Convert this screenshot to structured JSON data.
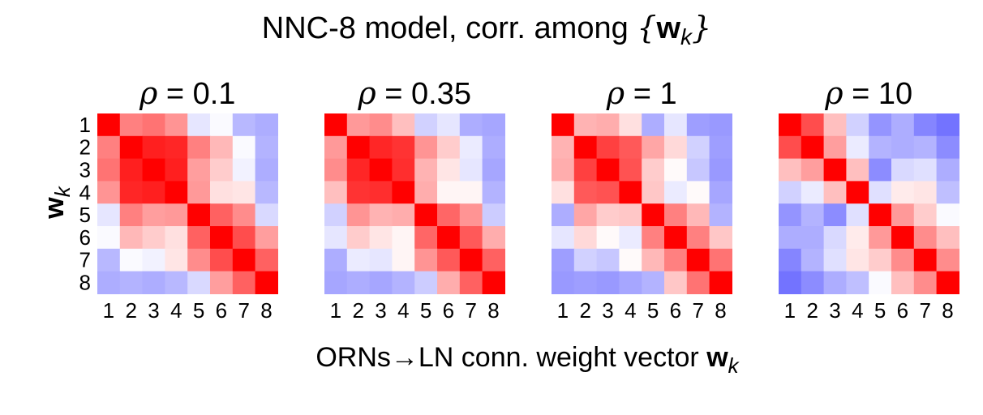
{
  "figure": {
    "title_main": "NNC-8 model, corr. among ",
    "title_brace_open": "{",
    "title_w": "w",
    "title_k": "k",
    "title_brace_close": "}",
    "xlabel_main": "ORNs→LN conn. weight vector ",
    "xlabel_w": "w",
    "xlabel_k": "k",
    "ylabel_w": "w",
    "ylabel_k": "k"
  },
  "chart_data": {
    "type": "heatmap",
    "title": "NNC-8 model, corr. among {w_k}",
    "xlabel": "ORNs→LN conn. weight vector w_k",
    "ylabel": "w_k",
    "colormap": {
      "low": "#0000ff",
      "mid": "#ffffff",
      "high": "#ff0000"
    },
    "value_range": [
      -1,
      1
    ],
    "x_ticks": [
      "1",
      "2",
      "3",
      "4",
      "5",
      "6",
      "7",
      "8"
    ],
    "y_ticks": [
      "1",
      "2",
      "3",
      "4",
      "5",
      "6",
      "7",
      "8"
    ],
    "panels": [
      {
        "rho_symbol": "ρ",
        "rho_text": " = 0.1",
        "matrix": [
          [
            1.0,
            0.5,
            0.55,
            0.42,
            -0.1,
            -0.02,
            -0.28,
            -0.32
          ],
          [
            0.5,
            1.0,
            0.88,
            0.85,
            0.5,
            0.28,
            -0.02,
            -0.3
          ],
          [
            0.55,
            0.88,
            1.0,
            0.88,
            0.38,
            0.2,
            -0.05,
            -0.32
          ],
          [
            0.42,
            0.85,
            0.88,
            1.0,
            0.4,
            0.12,
            0.1,
            -0.28
          ],
          [
            -0.1,
            0.5,
            0.38,
            0.4,
            1.0,
            0.62,
            0.45,
            -0.15
          ],
          [
            -0.02,
            0.28,
            0.2,
            0.12,
            0.62,
            1.0,
            0.7,
            0.38
          ],
          [
            -0.28,
            -0.02,
            -0.05,
            0.1,
            0.45,
            0.7,
            1.0,
            0.62
          ],
          [
            -0.32,
            -0.3,
            -0.32,
            -0.28,
            -0.15,
            0.38,
            0.62,
            1.0
          ]
        ]
      },
      {
        "rho_symbol": "ρ",
        "rho_text": " = 0.35",
        "matrix": [
          [
            1.0,
            0.4,
            0.45,
            0.25,
            -0.18,
            -0.1,
            -0.32,
            -0.35
          ],
          [
            0.4,
            1.0,
            0.85,
            0.8,
            0.42,
            0.2,
            -0.08,
            -0.32
          ],
          [
            0.45,
            0.85,
            1.0,
            0.82,
            0.3,
            0.1,
            -0.1,
            -0.35
          ],
          [
            0.25,
            0.8,
            0.82,
            1.0,
            0.32,
            0.04,
            0.04,
            -0.3
          ],
          [
            -0.18,
            0.42,
            0.3,
            0.32,
            1.0,
            0.6,
            0.42,
            -0.2
          ],
          [
            -0.1,
            0.2,
            0.1,
            0.04,
            0.6,
            1.0,
            0.65,
            0.32
          ],
          [
            -0.32,
            -0.08,
            -0.1,
            0.04,
            0.42,
            0.65,
            1.0,
            0.62
          ],
          [
            -0.35,
            -0.32,
            -0.35,
            -0.3,
            -0.2,
            0.32,
            0.62,
            1.0
          ]
        ]
      },
      {
        "rho_symbol": "ρ",
        "rho_text": " = 1",
        "matrix": [
          [
            1.0,
            0.3,
            0.32,
            0.12,
            -0.32,
            -0.1,
            -0.38,
            -0.4
          ],
          [
            0.3,
            1.0,
            0.75,
            0.65,
            0.35,
            0.15,
            -0.18,
            -0.38
          ],
          [
            0.32,
            0.75,
            1.0,
            0.68,
            0.2,
            0.02,
            -0.22,
            -0.4
          ],
          [
            0.12,
            0.65,
            0.68,
            1.0,
            0.22,
            -0.08,
            0.02,
            -0.35
          ],
          [
            -0.32,
            0.35,
            0.2,
            0.22,
            1.0,
            0.5,
            0.28,
            -0.3
          ],
          [
            -0.1,
            0.15,
            0.02,
            -0.08,
            0.5,
            1.0,
            0.5,
            0.22
          ],
          [
            -0.38,
            -0.18,
            -0.22,
            0.02,
            0.28,
            0.5,
            1.0,
            0.55
          ],
          [
            -0.4,
            -0.38,
            -0.4,
            -0.35,
            -0.3,
            0.22,
            0.55,
            1.0
          ]
        ]
      },
      {
        "rho_symbol": "ρ",
        "rho_text": " = 10",
        "matrix": [
          [
            1.0,
            0.7,
            0.25,
            -0.18,
            -0.42,
            -0.32,
            -0.48,
            -0.55
          ],
          [
            0.7,
            1.0,
            0.38,
            -0.08,
            -0.3,
            -0.32,
            -0.3,
            -0.45
          ],
          [
            0.25,
            0.38,
            1.0,
            0.25,
            -0.45,
            -0.15,
            -0.12,
            -0.32
          ],
          [
            -0.18,
            -0.08,
            0.25,
            1.0,
            -0.12,
            0.08,
            0.1,
            -0.25
          ],
          [
            -0.42,
            -0.3,
            -0.45,
            -0.12,
            1.0,
            0.4,
            0.2,
            -0.02
          ],
          [
            -0.32,
            -0.32,
            -0.15,
            0.08,
            0.4,
            1.0,
            0.45,
            0.25
          ],
          [
            -0.48,
            -0.3,
            -0.12,
            0.1,
            0.2,
            0.45,
            1.0,
            0.45
          ],
          [
            -0.55,
            -0.45,
            -0.32,
            -0.25,
            -0.02,
            0.25,
            0.45,
            1.0
          ]
        ]
      }
    ]
  }
}
